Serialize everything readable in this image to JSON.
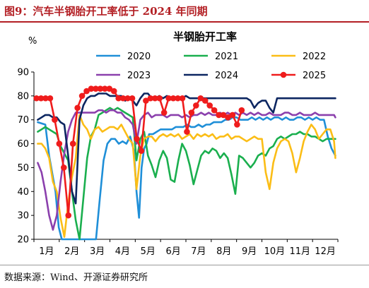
{
  "figure": {
    "label": "图9：汽车半钢胎开工率低于 2024 年同期",
    "source": "数据来源：Wind、开源证券研究所"
  },
  "chart_data": {
    "type": "line",
    "title": "半钢胎开工率",
    "unit": "%",
    "ylim": [
      20,
      90
    ],
    "yticks": [
      20,
      30,
      40,
      50,
      60,
      70,
      80,
      90
    ],
    "x_domain": [
      1,
      13
    ],
    "xticks": [
      {
        "x": 1.5,
        "label": "1月"
      },
      {
        "x": 2.5,
        "label": "2月"
      },
      {
        "x": 3.5,
        "label": "3月"
      },
      {
        "x": 4.5,
        "label": "4月"
      },
      {
        "x": 5.5,
        "label": "5月"
      },
      {
        "x": 6.5,
        "label": "6月"
      },
      {
        "x": 7.5,
        "label": "7月"
      },
      {
        "x": 8.5,
        "label": "8月"
      },
      {
        "x": 9.5,
        "label": "9月"
      },
      {
        "x": 10.5,
        "label": "10月"
      },
      {
        "x": 11.5,
        "label": "11月"
      },
      {
        "x": 12.5,
        "label": "12月"
      }
    ],
    "grid": false,
    "legend_position": "top",
    "series": [
      {
        "name": "2020",
        "color": "#1f8fd8",
        "markers": false,
        "x": [
          1.15,
          1.45,
          1.6,
          1.85,
          1.98,
          2.1,
          2.25,
          2.4,
          2.55,
          2.7,
          2.85,
          3.0,
          3.15,
          3.3,
          3.45,
          3.6,
          3.75,
          3.9,
          4.05,
          4.2,
          4.35,
          4.5,
          4.65,
          4.8,
          4.95,
          5.05,
          5.15,
          5.25,
          5.35,
          5.45,
          5.55,
          5.7,
          5.85,
          6.0,
          6.15,
          6.3,
          6.45,
          6.6,
          6.75,
          6.9,
          7.05,
          7.2,
          7.35,
          7.5,
          7.65,
          7.8,
          7.95,
          8.1,
          8.25,
          8.4,
          8.55,
          8.7,
          8.85,
          9.0,
          9.15,
          9.3,
          9.45,
          9.6,
          9.75,
          9.9,
          10.05,
          10.2,
          10.35,
          10.5,
          10.65,
          10.8,
          10.95,
          11.1,
          11.25,
          11.4,
          11.55,
          11.7,
          11.85,
          12.0,
          12.15,
          12.3,
          12.45,
          12.6,
          12.75,
          12.9
        ],
        "y": [
          69,
          68,
          55,
          40,
          25,
          20,
          20,
          20,
          20,
          20,
          20,
          20,
          20,
          20,
          20,
          37,
          53,
          60,
          62,
          62,
          60,
          61,
          60,
          63,
          57,
          40,
          29,
          50,
          58,
          60,
          64,
          64,
          65,
          66,
          66,
          66,
          66,
          67,
          67,
          67,
          68,
          67,
          67,
          68,
          67,
          68,
          68,
          69,
          69,
          69,
          70,
          70,
          71,
          71,
          70,
          70,
          70,
          71,
          70,
          71,
          70,
          71,
          70,
          71,
          71,
          70,
          71,
          70,
          70,
          71,
          71,
          70,
          71,
          70,
          71,
          70,
          70,
          63,
          58,
          55
        ]
      },
      {
        "name": "2021",
        "color": "#1aaf4e",
        "markers": false,
        "x": [
          1.15,
          1.3,
          1.45,
          1.6,
          1.75,
          1.9,
          2.05,
          2.2,
          2.35,
          2.5,
          2.65,
          2.8,
          2.95,
          3.1,
          3.25,
          3.4,
          3.55,
          3.7,
          3.85,
          4.0,
          4.15,
          4.3,
          4.45,
          4.6,
          4.75,
          4.9,
          5.05,
          5.2,
          5.35,
          5.5,
          5.65,
          5.8,
          5.95,
          6.1,
          6.25,
          6.4,
          6.55,
          6.7,
          6.85,
          7.0,
          7.15,
          7.3,
          7.45,
          7.6,
          7.75,
          7.9,
          8.05,
          8.2,
          8.35,
          8.5,
          8.65,
          8.8,
          8.95,
          9.1,
          9.25,
          9.4,
          9.55,
          9.7,
          9.85,
          10.0,
          10.15,
          10.3,
          10.45,
          10.6,
          10.75,
          10.9,
          11.05,
          11.2,
          11.35,
          11.5,
          11.65,
          11.8,
          11.95,
          12.1,
          12.25,
          12.4,
          12.55,
          12.7,
          12.85,
          12.9
        ],
        "y": [
          65,
          66,
          67,
          66,
          65,
          64,
          59,
          56,
          53,
          40,
          28,
          20,
          37,
          54,
          63,
          66,
          72,
          73,
          74,
          75,
          74,
          75,
          74,
          73,
          72,
          71,
          53,
          62,
          65,
          55,
          51,
          46,
          53,
          57,
          54,
          45,
          44,
          53,
          60,
          57,
          51,
          43,
          49,
          55,
          57,
          56,
          58,
          57,
          54,
          56,
          54,
          47,
          39,
          55,
          54,
          52,
          50,
          52,
          55,
          56,
          55,
          58,
          59,
          62,
          63,
          62,
          63,
          64,
          64,
          65,
          64,
          64,
          63,
          63,
          62,
          61,
          62,
          62,
          62,
          62
        ]
      },
      {
        "name": "2022",
        "color": "#fbbd16",
        "markers": false,
        "x": [
          1.15,
          1.3,
          1.45,
          1.6,
          1.75,
          1.9,
          2.05,
          2.2,
          2.35,
          2.5,
          2.65,
          2.8,
          2.95,
          3.1,
          3.25,
          3.4,
          3.55,
          3.7,
          3.85,
          4.0,
          4.15,
          4.3,
          4.45,
          4.6,
          4.75,
          4.9,
          5.05,
          5.2,
          5.35,
          5.5,
          5.65,
          5.8,
          5.95,
          6.1,
          6.25,
          6.4,
          6.55,
          6.7,
          6.85,
          7.0,
          7.15,
          7.3,
          7.45,
          7.6,
          7.75,
          7.9,
          8.05,
          8.2,
          8.35,
          8.5,
          8.65,
          8.8,
          8.95,
          9.1,
          9.25,
          9.4,
          9.55,
          9.7,
          9.85,
          10.0,
          10.15,
          10.3,
          10.45,
          10.6,
          10.75,
          10.9,
          11.05,
          11.2,
          11.35,
          11.5,
          11.65,
          11.8,
          11.95,
          12.1,
          12.25,
          12.4,
          12.55,
          12.7,
          12.85,
          12.9
        ],
        "y": [
          60,
          60,
          58,
          54,
          44,
          40,
          29,
          21,
          35,
          46,
          54,
          72,
          68,
          66,
          62,
          66,
          67,
          65,
          66,
          67,
          67,
          66,
          68,
          65,
          62,
          60,
          41,
          55,
          62,
          63,
          63,
          61,
          63,
          64,
          63,
          64,
          63,
          64,
          62,
          63,
          64,
          62,
          64,
          63,
          64,
          63,
          64,
          62,
          63,
          63,
          64,
          62,
          63,
          63,
          62,
          61,
          62,
          63,
          62,
          62,
          48,
          41,
          52,
          58,
          61,
          62,
          61,
          56,
          48,
          54,
          61,
          65,
          68,
          66,
          62,
          64,
          66,
          66,
          61,
          54
        ]
      },
      {
        "name": "2023",
        "color": "#8b40ad",
        "markers": false,
        "x": [
          1.15,
          1.3,
          1.45,
          1.6,
          1.75,
          1.9,
          2.05,
          2.2,
          2.35,
          2.5,
          2.65,
          2.8,
          2.95,
          3.1,
          3.25,
          3.4,
          3.55,
          3.7,
          3.85,
          4.0,
          4.15,
          4.3,
          4.45,
          4.6,
          4.75,
          4.9,
          5.05,
          5.2,
          5.35,
          5.5,
          5.65,
          5.8,
          5.95,
          6.1,
          6.25,
          6.4,
          6.55,
          6.7,
          6.85,
          7.0,
          7.15,
          7.3,
          7.45,
          7.6,
          7.75,
          7.9,
          8.05,
          8.2,
          8.35,
          8.5,
          8.65,
          8.8,
          8.95,
          9.1,
          9.25,
          9.4,
          9.55,
          9.7,
          9.85,
          10.0,
          10.15,
          10.3,
          10.45,
          10.6,
          10.75,
          10.9,
          11.05,
          11.2,
          11.35,
          11.5,
          11.65,
          11.8,
          11.95,
          12.1,
          12.25,
          12.4,
          12.55,
          12.7,
          12.85,
          12.9
        ],
        "y": [
          52,
          48,
          40,
          30,
          24,
          30,
          44,
          56,
          65,
          70,
          73,
          73,
          73,
          73,
          73,
          73,
          74,
          74,
          73,
          74,
          74,
          73,
          73,
          71,
          70,
          68,
          60,
          70,
          72,
          73,
          71,
          72,
          72,
          72,
          71,
          72,
          72,
          72,
          71,
          72,
          71,
          72,
          72,
          73,
          72,
          73,
          72,
          72,
          73,
          72,
          73,
          72,
          73,
          72,
          73,
          72,
          73,
          72,
          73,
          72,
          72,
          73,
          72,
          72,
          72,
          73,
          73,
          72,
          72,
          73,
          72,
          72,
          72,
          73,
          72,
          72,
          72,
          72,
          72,
          71
        ]
      },
      {
        "name": "2024",
        "color": "#0c2661",
        "markers": false,
        "x": [
          1.15,
          1.3,
          1.45,
          1.6,
          1.75,
          1.9,
          2.05,
          2.2,
          2.35,
          2.5,
          2.65,
          2.8,
          2.95,
          3.1,
          3.25,
          3.4,
          3.55,
          3.7,
          3.85,
          4.0,
          4.15,
          4.3,
          4.45,
          4.6,
          4.75,
          4.9,
          5.05,
          5.2,
          5.35,
          5.5,
          5.65,
          5.8,
          5.95,
          6.1,
          6.25,
          6.4,
          6.55,
          6.7,
          6.85,
          7.0,
          7.15,
          7.3,
          7.45,
          7.6,
          7.75,
          7.9,
          8.05,
          8.2,
          8.35,
          8.5,
          8.65,
          8.8,
          8.95,
          9.1,
          9.25,
          9.4,
          9.55,
          9.7,
          9.85,
          10.0,
          10.15,
          10.3,
          10.45,
          10.6,
          10.75,
          10.9,
          11.05,
          11.2,
          11.35,
          11.5,
          11.65,
          11.8,
          11.95,
          12.1,
          12.25,
          12.4,
          12.55,
          12.7,
          12.85,
          12.9
        ],
        "y": [
          70,
          71,
          72,
          72,
          71,
          71,
          69,
          68,
          55,
          40,
          35,
          70,
          76,
          79,
          80,
          80,
          81,
          81,
          81,
          80,
          80,
          80,
          80,
          78,
          79,
          78,
          76,
          79,
          81,
          81,
          79,
          79,
          80,
          79,
          80,
          79,
          79,
          79,
          79,
          80,
          79,
          79,
          79,
          79,
          79,
          79,
          79,
          79,
          79,
          79,
          79,
          79,
          79,
          79,
          79,
          79,
          78,
          75,
          77,
          78,
          78,
          75,
          73,
          79,
          79,
          79,
          79,
          79,
          79,
          79,
          79,
          79,
          79,
          79,
          79,
          79,
          79,
          79,
          79,
          79
        ]
      },
      {
        "name": "2025",
        "color": "#ef1c1c",
        "markers": true,
        "x": [
          1.1,
          1.28,
          1.46,
          1.64,
          1.82,
          2.0,
          2.18,
          2.36,
          2.54,
          2.72,
          2.9,
          3.08,
          3.26,
          3.44,
          3.62,
          3.8,
          3.98,
          4.16,
          4.34,
          4.52,
          4.7,
          4.88,
          5.06,
          5.24,
          5.42,
          5.6,
          5.78,
          5.96,
          6.14,
          6.32,
          6.5,
          6.68,
          6.86,
          7.04,
          7.22,
          7.4,
          7.58,
          7.76,
          7.94,
          8.12,
          8.3,
          8.48,
          8.66,
          8.84,
          9.02,
          9.2
        ],
        "y": [
          79,
          79,
          79,
          79,
          70,
          60,
          50,
          30,
          60,
          75,
          80,
          82,
          83,
          83,
          83,
          83,
          83,
          82,
          79,
          79,
          79,
          79,
          62,
          57,
          78,
          79,
          79,
          79,
          73,
          79,
          79,
          79,
          79,
          65,
          73,
          76,
          79,
          78,
          76,
          74,
          72,
          72,
          71,
          72,
          68,
          74
        ]
      }
    ]
  }
}
